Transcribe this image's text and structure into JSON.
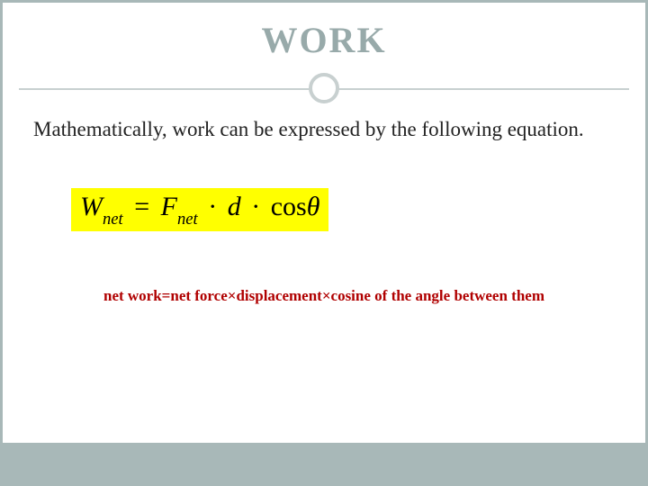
{
  "slide": {
    "title": "WORK",
    "intro": "Mathematically, work can be expressed by the following equation.",
    "equation": {
      "lhs_var": "W",
      "lhs_sub": "net",
      "eq_sign": "=",
      "rhs_var1": "F",
      "rhs_sub1": "net",
      "dot1": "·",
      "rhs_var2": "d",
      "dot2": "·",
      "cos": "cos",
      "theta": "θ",
      "bg_color": "#ffff00",
      "text_color": "#000000"
    },
    "caption": "net work=net force×displacement×cosine of the angle between them",
    "colors": {
      "title_color": "#98aaaa",
      "border_color": "#a8b8b8",
      "divider_color": "#c8d0d0",
      "caption_color": "#b00000",
      "background": "#ffffff"
    },
    "fonts": {
      "title_size_pt": 30,
      "intro_size_pt": 17,
      "equation_size_pt": 22,
      "caption_size_pt": 13
    }
  }
}
